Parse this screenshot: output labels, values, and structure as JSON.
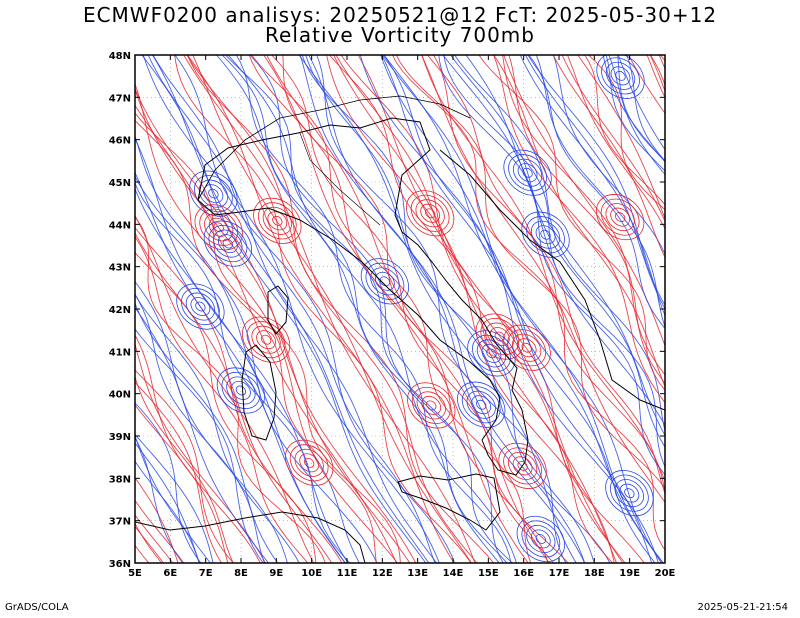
{
  "title": {
    "line1": "ECMWF0200 analisys: 20250521@12 FcT: 2025-05-30+12",
    "line2": "Relative Vorticity 700mb"
  },
  "map": {
    "lon_labels": [
      "5E",
      "6E",
      "7E",
      "8E",
      "9E",
      "10E",
      "11E",
      "12E",
      "13E",
      "14E",
      "15E",
      "16E",
      "17E",
      "18E",
      "19E",
      "20E"
    ],
    "lat_labels": [
      "36N",
      "37N",
      "38N",
      "39N",
      "40N",
      "41N",
      "42N",
      "43N",
      "44N",
      "45N",
      "46N",
      "47N",
      "48N"
    ],
    "lon_range": [
      5,
      20
    ],
    "lat_range": [
      36,
      48
    ],
    "colors": {
      "positive_vorticity": "#e8232b",
      "negative_vorticity": "#2846e8",
      "coastline": "#000000",
      "grid": "#999999"
    }
  },
  "footer": {
    "left": "GrADS/COLA",
    "right": "2025-05-21-21:54"
  }
}
